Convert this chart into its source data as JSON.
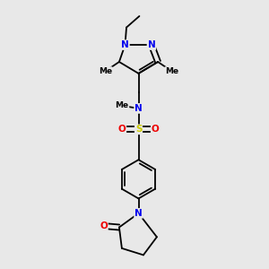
{
  "background_color": "#e8e8e8",
  "atom_colors": {
    "C": "#000000",
    "N": "#0000ee",
    "O": "#ee0000",
    "S": "#cccc00"
  },
  "bond_color": "#000000",
  "bond_lw": 1.3,
  "font_size": 7.5,
  "figsize": [
    3.0,
    3.0
  ],
  "dpi": 100,
  "xlim": [
    0,
    10
  ],
  "ylim": [
    0,
    10
  ]
}
